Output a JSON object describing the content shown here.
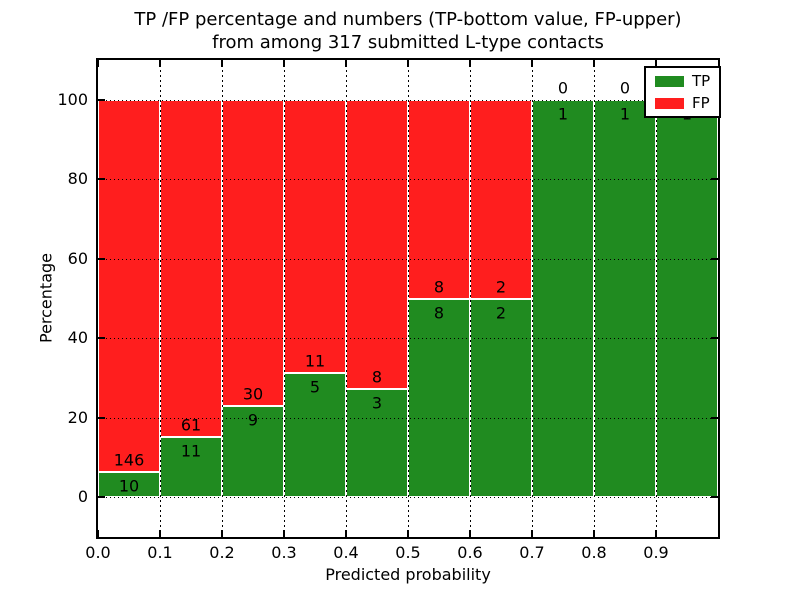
{
  "figure": {
    "title_line1": "TP /FP percentage and numbers (TP-bottom value, FP-upper)",
    "title_line2": "from among 317 submitted L-type contacts"
  },
  "chart_data": {
    "type": "bar",
    "subtype": "stacked-percentage-histogram",
    "title": "TP /FP percentage and numbers (TP-bottom value, FP-upper) from among 317 submitted L-type contacts",
    "xlabel": "Predicted probability",
    "ylabel": "Percentage",
    "total_contacts": 317,
    "grid": true,
    "legend_position": "upper-right",
    "xlim": [
      0.0,
      1.0
    ],
    "ylim": [
      -10,
      110
    ],
    "xtick_labels": [
      "0.0",
      "0.1",
      "0.2",
      "0.3",
      "0.4",
      "0.5",
      "0.6",
      "0.7",
      "0.8",
      "0.9"
    ],
    "ytick_labels": [
      "0",
      "20",
      "40",
      "60",
      "80",
      "100"
    ],
    "bins": [
      [
        0.0,
        0.1
      ],
      [
        0.1,
        0.2
      ],
      [
        0.2,
        0.3
      ],
      [
        0.3,
        0.4
      ],
      [
        0.4,
        0.5
      ],
      [
        0.5,
        0.6
      ],
      [
        0.6,
        0.7
      ],
      [
        0.7,
        0.8
      ],
      [
        0.8,
        0.9
      ],
      [
        0.9,
        1.0
      ]
    ],
    "series": [
      {
        "name": "TP",
        "color": "#208b20",
        "values": [
          10,
          11,
          9,
          5,
          3,
          8,
          2,
          1,
          1,
          1
        ]
      },
      {
        "name": "FP",
        "color": "#ff1e1e",
        "values": [
          146,
          61,
          30,
          11,
          8,
          8,
          2,
          0,
          0,
          0
        ]
      }
    ],
    "tp_percent_of_bin": [
      6.41,
      15.28,
      23.08,
      31.25,
      27.27,
      50.0,
      50.0,
      100.0,
      100.0,
      100.0
    ]
  }
}
